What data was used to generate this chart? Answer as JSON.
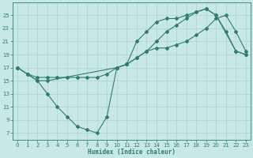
{
  "line1_x": [
    0,
    1,
    2,
    3,
    4,
    5,
    6,
    7,
    8,
    9,
    10,
    11,
    12,
    13,
    14,
    15,
    16,
    17,
    18,
    19,
    20,
    21,
    22,
    23
  ],
  "line1_y": [
    17.0,
    16.0,
    15.5,
    15.5,
    15.5,
    15.5,
    15.5,
    15.5,
    15.5,
    16.0,
    17.0,
    17.5,
    18.5,
    19.5,
    20.0,
    20.0,
    20.5,
    21.0,
    22.0,
    23.0,
    24.5,
    25.0,
    22.5,
    19.5
  ],
  "line2_x": [
    0,
    1,
    2,
    3,
    4,
    5,
    6,
    7,
    8,
    9,
    10,
    11,
    12,
    13,
    14,
    15,
    16,
    17,
    18,
    19,
    20,
    21,
    22,
    23
  ],
  "line2_y": [
    17.0,
    16.0,
    15.0,
    13.0,
    11.0,
    9.5,
    8.0,
    7.5,
    7.0,
    9.5,
    17.0,
    17.5,
    21.0,
    22.5,
    24.0,
    24.5,
    24.5,
    25.0,
    25.5,
    26.0,
    25.0,
    22.5,
    19.5,
    19.0
  ],
  "line3_x": [
    0,
    1,
    2,
    3,
    10,
    11,
    12,
    13,
    14,
    15,
    16,
    17,
    18,
    19,
    20,
    22,
    23
  ],
  "line3_y": [
    17.0,
    16.0,
    15.0,
    15.0,
    17.0,
    17.5,
    18.5,
    19.5,
    21.0,
    22.5,
    23.5,
    24.5,
    25.5,
    26.0,
    25.0,
    19.5,
    19.0
  ],
  "line_color": "#2e7d6e",
  "bg_color": "#c8e8e8",
  "grid_color": "#b0d0d0",
  "xlabel": "Humidex (Indice chaleur)",
  "xlim": [
    -0.5,
    23.5
  ],
  "ylim": [
    6,
    27
  ],
  "yticks": [
    7,
    9,
    11,
    13,
    15,
    17,
    19,
    21,
    23,
    25
  ],
  "xticks": [
    0,
    1,
    2,
    3,
    4,
    5,
    6,
    7,
    8,
    9,
    10,
    11,
    12,
    13,
    14,
    15,
    16,
    17,
    18,
    19,
    20,
    21,
    22,
    23
  ],
  "marker": "D",
  "markersize": 2.0,
  "linewidth": 0.8
}
